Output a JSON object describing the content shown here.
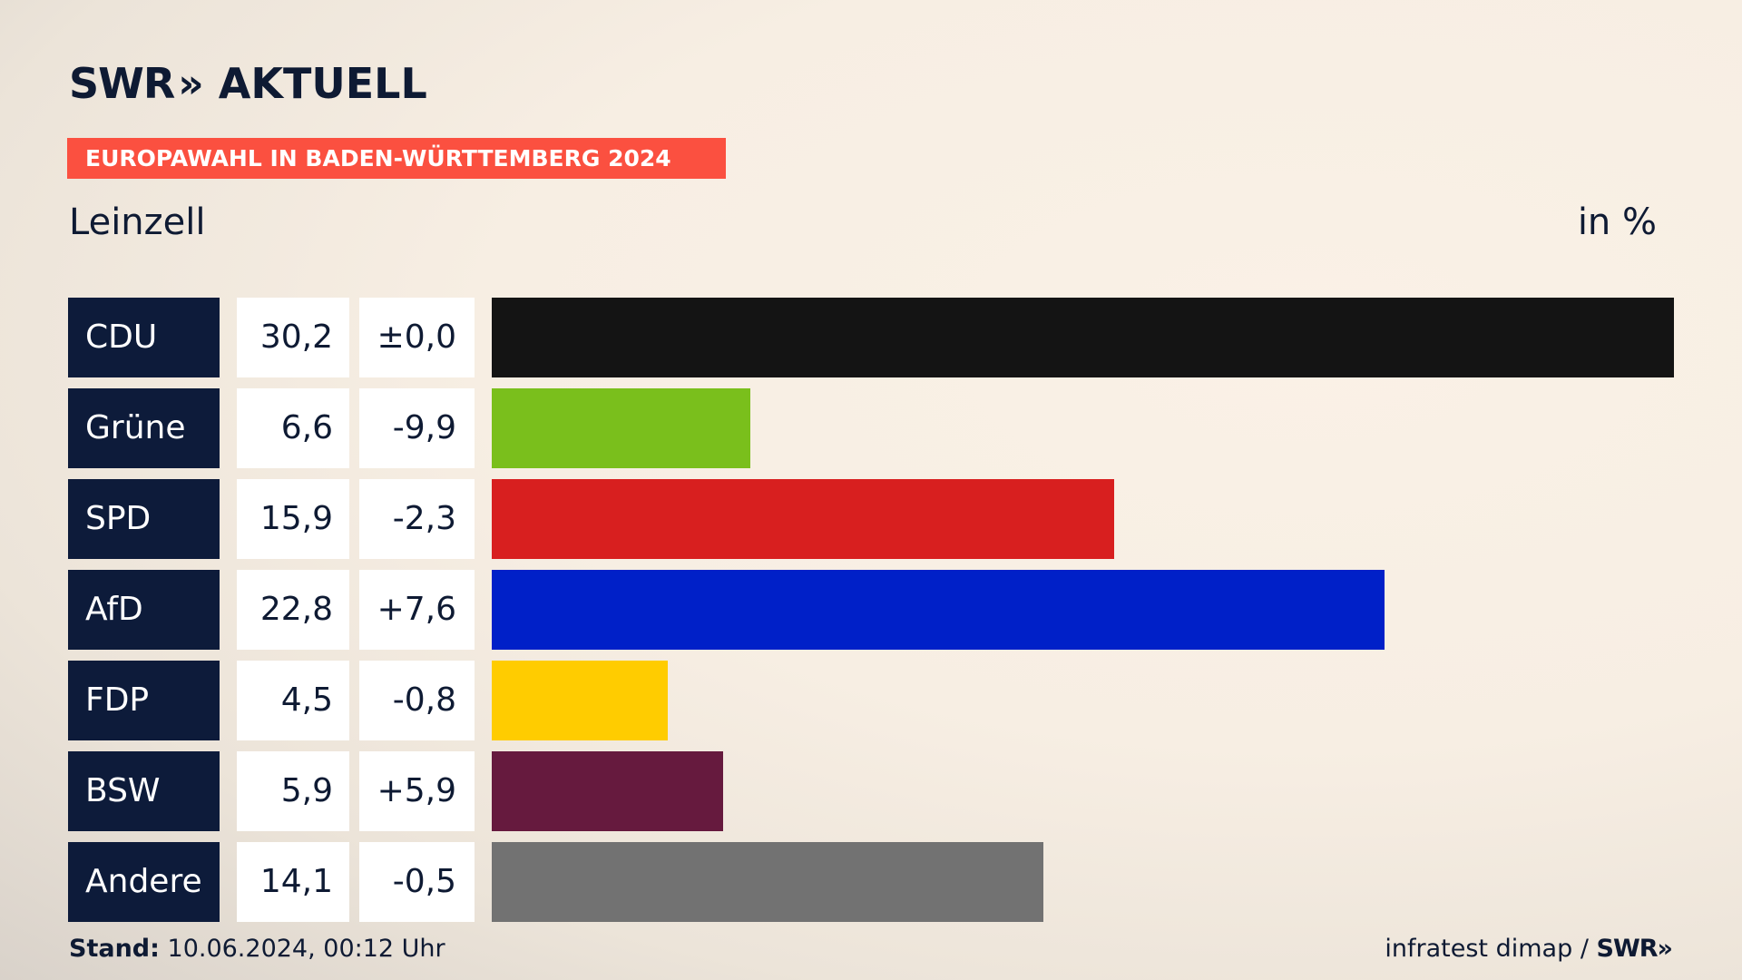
{
  "header": {
    "logo_brand": "SWR",
    "logo_chevrons": "»",
    "logo_program": "AKTUELL",
    "banner": "EUROPAWAHL IN BADEN-WÜRTTEMBERG 2024",
    "place": "Leinzell",
    "unit": "in %"
  },
  "chart_data": {
    "type": "bar",
    "orientation": "horizontal",
    "categories": [
      "CDU",
      "Grüne",
      "SPD",
      "AfD",
      "FDP",
      "BSW",
      "Andere"
    ],
    "values": [
      30.2,
      6.6,
      15.9,
      22.8,
      4.5,
      5.9,
      14.1
    ],
    "value_labels": [
      "30,2",
      "6,6",
      "15,9",
      "22,8",
      "4,5",
      "5,9",
      "14,1"
    ],
    "changes": [
      0.0,
      -9.9,
      -2.3,
      7.6,
      -0.8,
      5.9,
      -0.5
    ],
    "change_labels": [
      "±0,0",
      "-9,9",
      "-2,3",
      "+7,6",
      "-0,8",
      "+5,9",
      "-0,5"
    ],
    "colors": [
      "#141414",
      "#7abf1c",
      "#d81f1f",
      "#0020c8",
      "#ffcc00",
      "#661a3e",
      "#727272"
    ],
    "xlim": [
      0,
      30.2
    ]
  },
  "footer": {
    "stand_label": "Stand:",
    "stand_value": "10.06.2024, 00:12 Uhr",
    "source": "infratest dimap /",
    "source_brand": "SWR",
    "source_chevrons": "»"
  }
}
